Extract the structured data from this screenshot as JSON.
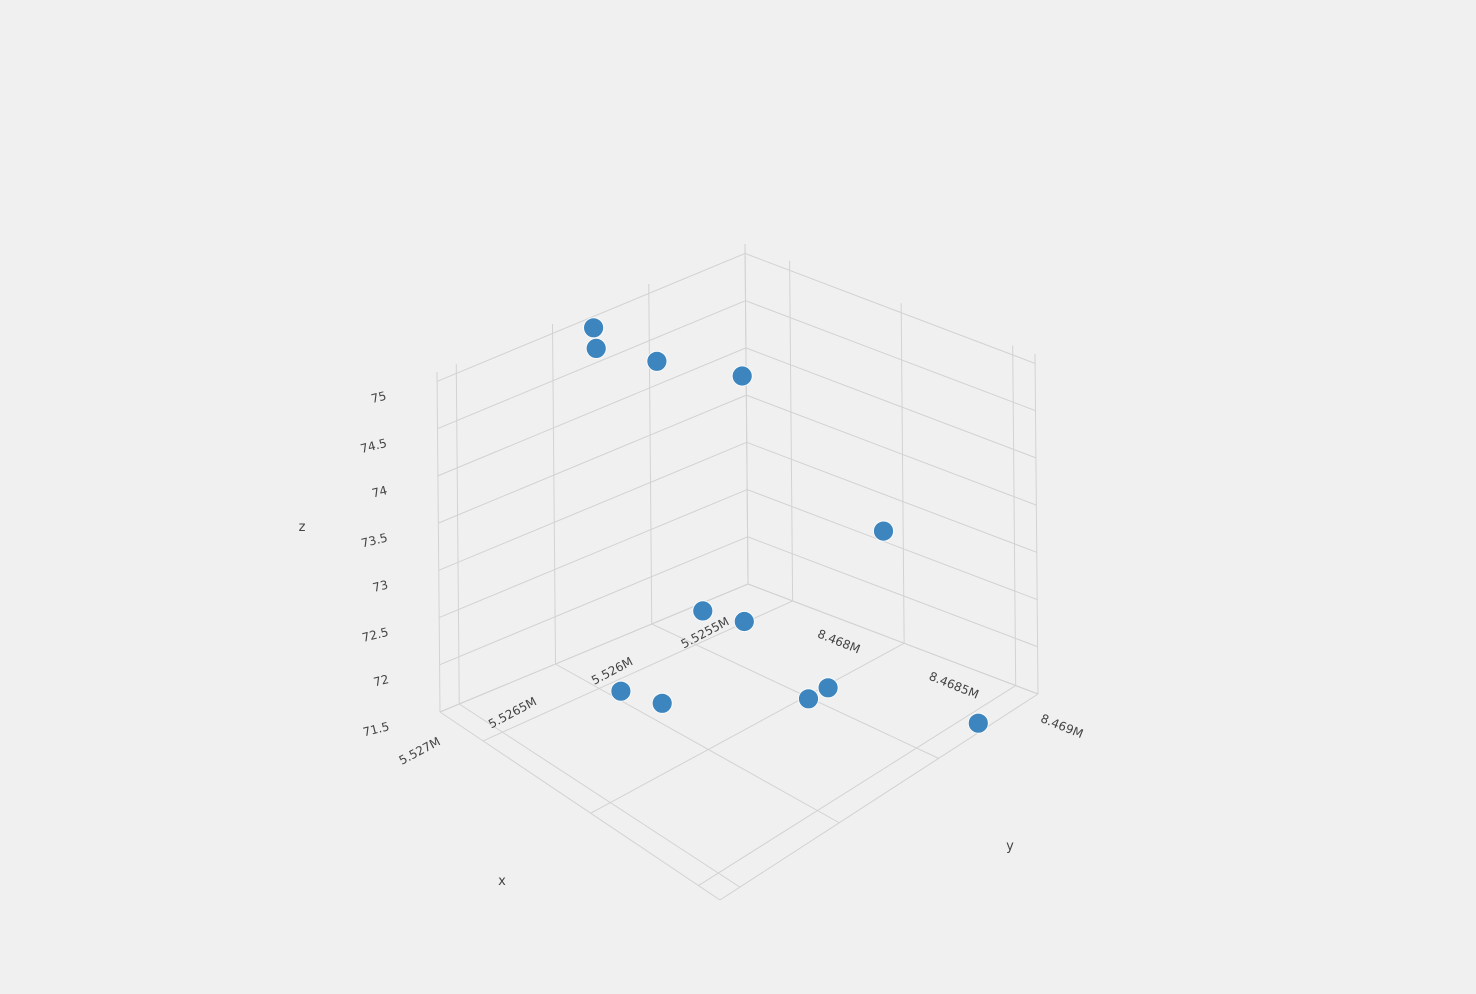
{
  "chart_data": {
    "type": "scatter3d",
    "title": "",
    "axes": {
      "x": {
        "label": "x",
        "ticks": [
          5.5255,
          5.526,
          5.5265,
          5.527
        ],
        "tick_labels": [
          "5.5255M",
          "5.526M",
          "5.5265M",
          "5.527M"
        ]
      },
      "y": {
        "label": "y",
        "ticks": [
          8.468,
          8.4685,
          8.469
        ],
        "tick_labels": [
          "8.468M",
          "8.4685M",
          "8.469M"
        ]
      },
      "z": {
        "label": "z",
        "ticks": [
          71.5,
          72,
          72.5,
          73,
          73.5,
          74,
          74.5,
          75
        ],
        "tick_labels": [
          "71.5",
          "72",
          "72.5",
          "73",
          "73.5",
          "74",
          "74.5",
          "75"
        ]
      }
    },
    "grid": true,
    "marker_color": "#3d85be",
    "points": [
      {
        "x": 5.5264,
        "y": 8.4679,
        "z": 75.1
      },
      {
        "x": 5.5265,
        "y": 8.468,
        "z": 75.1
      },
      {
        "x": 5.5263,
        "y": 8.4681,
        "z": 74.9
      },
      {
        "x": 5.5262,
        "y": 8.4684,
        "z": 75.0
      },
      {
        "x": 5.5263,
        "y": 8.4683,
        "z": 72.5
      },
      {
        "x": 5.5262,
        "y": 8.4684,
        "z": 72.4
      },
      {
        "x": 5.5265,
        "y": 8.4681,
        "z": 71.6
      },
      {
        "x": 5.5264,
        "y": 8.4682,
        "z": 71.5
      },
      {
        "x": 5.5261,
        "y": 8.4686,
        "z": 71.7
      },
      {
        "x": 5.526,
        "y": 8.4686,
        "z": 71.7
      },
      {
        "x": 5.5256,
        "y": 8.4685,
        "z": 72.8
      },
      {
        "x": 5.5258,
        "y": 8.4691,
        "z": 71.6
      }
    ]
  }
}
